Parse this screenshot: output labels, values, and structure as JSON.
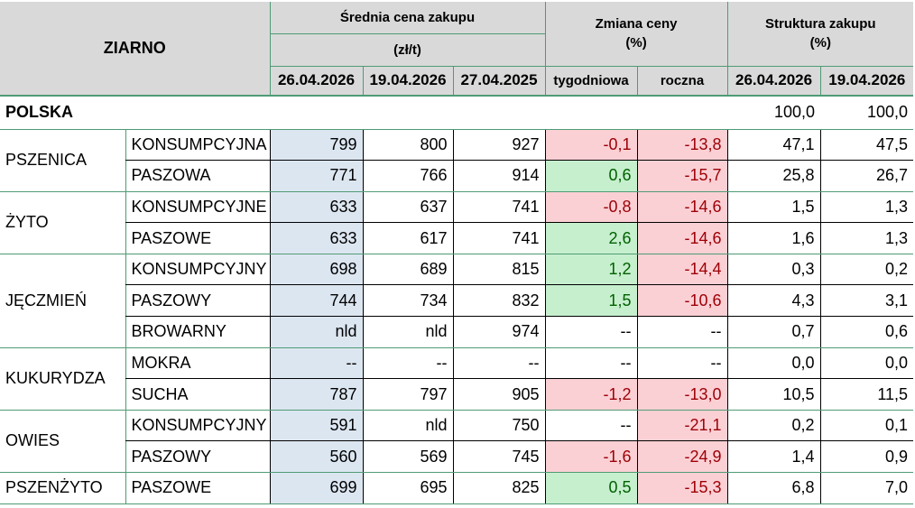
{
  "header": {
    "ziarno": "ZIARNO",
    "srednia": "Średnia cena zakupu",
    "srednia_unit": "(zł/t)",
    "zmiana": "Zmiana ceny",
    "zmiana_unit": "(%)",
    "struktura": "Struktura zakupu",
    "struktura_unit": "(%)",
    "d1": "26.04.2026",
    "d2": "19.04.2026",
    "d3": "27.04.2025",
    "tyg": "tygodniowa",
    "roczna": "roczna",
    "s1": "26.04.2026",
    "s2": "19.04.2026"
  },
  "polska": {
    "label": "POLSKA",
    "s1": "100,0",
    "s2": "100,0"
  },
  "groups": [
    {
      "name": "PSZENICA",
      "rows": [
        {
          "type": "KONSUMPCYJNA",
          "p1": "799",
          "p2": "800",
          "p3": "927",
          "tyg": "-0,1",
          "tyg_color": "red",
          "roczna": "-13,8",
          "roczna_color": "red",
          "s1": "47,1",
          "s2": "47,5"
        },
        {
          "type": "PASZOWA",
          "p1": "771",
          "p2": "766",
          "p3": "914",
          "tyg": "0,6",
          "tyg_color": "green",
          "roczna": "-15,7",
          "roczna_color": "red",
          "s1": "25,8",
          "s2": "26,7"
        }
      ]
    },
    {
      "name": "ŻYTO",
      "rows": [
        {
          "type": "KONSUMPCYJNE",
          "p1": "633",
          "p2": "637",
          "p3": "741",
          "tyg": "-0,8",
          "tyg_color": "red",
          "roczna": "-14,6",
          "roczna_color": "red",
          "s1": "1,5",
          "s2": "1,3"
        },
        {
          "type": "PASZOWE",
          "p1": "633",
          "p2": "617",
          "p3": "741",
          "tyg": "2,6",
          "tyg_color": "green",
          "roczna": "-14,6",
          "roczna_color": "red",
          "s1": "1,6",
          "s2": "1,3"
        }
      ]
    },
    {
      "name": "JĘCZMIEŃ",
      "rows": [
        {
          "type": "KONSUMPCYJNY",
          "p1": "698",
          "p2": "689",
          "p3": "815",
          "tyg": "1,2",
          "tyg_color": "green",
          "roczna": "-14,4",
          "roczna_color": "red",
          "s1": "0,3",
          "s2": "0,2"
        },
        {
          "type": "PASZOWY",
          "p1": "744",
          "p2": "734",
          "p3": "832",
          "tyg": "1,5",
          "tyg_color": "green",
          "roczna": "-10,6",
          "roczna_color": "red",
          "s1": "4,3",
          "s2": "3,1"
        },
        {
          "type": "BROWARNY",
          "p1": "nld",
          "p2": "nld",
          "p3": "974",
          "tyg": "--",
          "tyg_color": "none",
          "roczna": "--",
          "roczna_color": "none",
          "s1": "0,7",
          "s2": "0,6"
        }
      ]
    },
    {
      "name": "KUKURYDZA",
      "rows": [
        {
          "type": "MOKRA",
          "p1": "--",
          "p2": "--",
          "p3": "--",
          "tyg": "--",
          "tyg_color": "none",
          "roczna": "--",
          "roczna_color": "none",
          "s1": "0,0",
          "s2": "0,0"
        },
        {
          "type": "SUCHA",
          "p1": "787",
          "p2": "797",
          "p3": "905",
          "tyg": "-1,2",
          "tyg_color": "red",
          "roczna": "-13,0",
          "roczna_color": "red",
          "s1": "10,5",
          "s2": "11,5"
        }
      ]
    },
    {
      "name": "OWIES",
      "rows": [
        {
          "type": "KONSUMPCYJNY",
          "p1": "591",
          "p2": "nld",
          "p3": "750",
          "tyg": "--",
          "tyg_color": "none",
          "roczna": "-21,1",
          "roczna_color": "red",
          "s1": "0,2",
          "s2": "0,1"
        },
        {
          "type": "PASZOWY",
          "p1": "560",
          "p2": "569",
          "p3": "745",
          "tyg": "-1,6",
          "tyg_color": "red",
          "roczna": "-24,9",
          "roczna_color": "red",
          "s1": "1,4",
          "s2": "0,9"
        }
      ]
    },
    {
      "name": "PSZENŻYTO",
      "rows": [
        {
          "type": "PASZOWE",
          "p1": "699",
          "p2": "695",
          "p3": "825",
          "tyg": "0,5",
          "tyg_color": "green",
          "roczna": "-15,3",
          "roczna_color": "red",
          "s1": "6,8",
          "s2": "7,0"
        }
      ]
    }
  ],
  "colors": {
    "header_bg": "#d9d9d9",
    "blue": "#dce6f1",
    "red_bg": "#fbd0d5",
    "red_text": "#9c0006",
    "green_bg": "#c6efce",
    "green_text": "#006100",
    "border": "#4f9b75"
  }
}
